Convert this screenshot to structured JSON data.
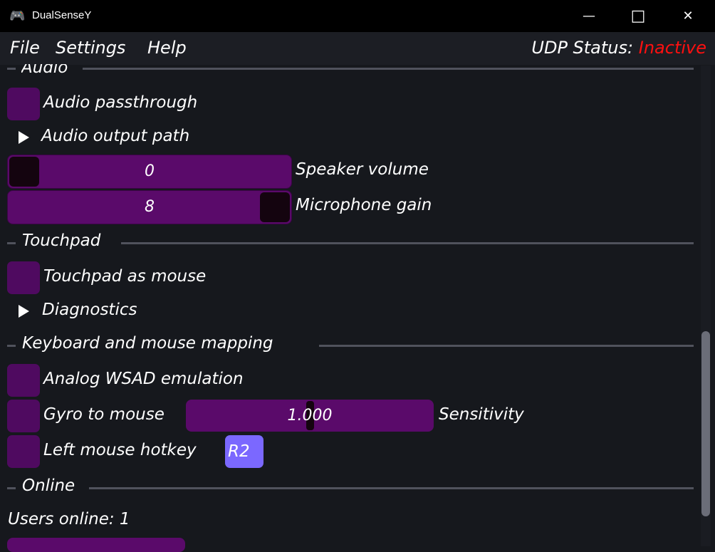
{
  "window": {
    "title": "DualSenseY",
    "icon": "gamepad-icon",
    "minimize": "—",
    "maximize": "□",
    "close": "✕"
  },
  "menu": {
    "file": "File",
    "settings": "Settings",
    "help": "Help",
    "udp_label": "UDP Status:",
    "udp_value": "Inactive",
    "udp_color": "#ff1010"
  },
  "audio": {
    "header": "Audio",
    "passthrough": "Audio passthrough",
    "output_path": "Audio output path",
    "speaker_value": "0",
    "speaker_label": "Speaker volume",
    "speaker_fraction": 0,
    "mic_value": "8",
    "mic_label": "Microphone gain",
    "mic_fraction": 1
  },
  "touchpad": {
    "header": "Touchpad",
    "as_mouse": "Touchpad as mouse",
    "diagnostics": "Diagnostics"
  },
  "mapping": {
    "header": "Keyboard and mouse mapping",
    "wsad": "Analog WSAD emulation",
    "gyro": "Gyro to mouse",
    "sensitivity_value": "1.000",
    "sensitivity_label": "Sensitivity",
    "hotkey": "Left mouse hotkey",
    "hotkey_value": "R2"
  },
  "online": {
    "header": "Online",
    "users": "Users online: 1"
  },
  "colors": {
    "accent": "#5a0a6a",
    "checkbox": "#4f0a60",
    "hotkey": "#7b68ff"
  }
}
